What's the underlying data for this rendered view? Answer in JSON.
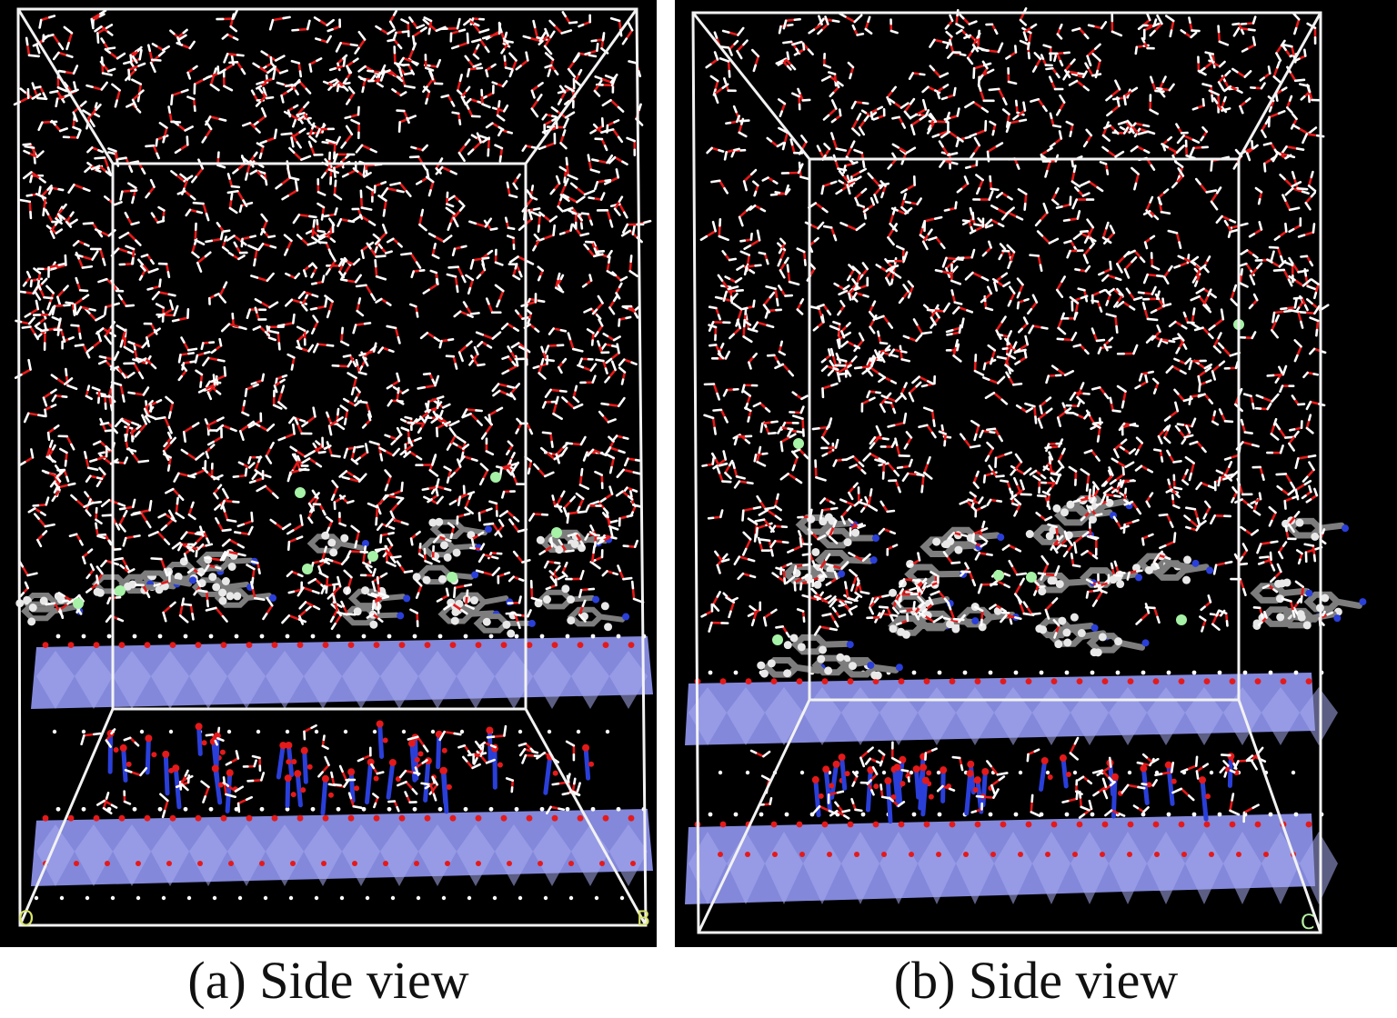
{
  "figure": {
    "panels": [
      {
        "id": "a",
        "caption": "(a) Side view",
        "axis_labels": [
          "O",
          "B"
        ]
      },
      {
        "id": "b",
        "caption": "(b) Side view",
        "axis_labels": [
          "C"
        ]
      }
    ],
    "colors": {
      "background": "#000000",
      "cell_box": "#f2f2f2",
      "oxygen": "#e41a1a",
      "hydrogen": "#ffffff",
      "carbon": "#7d7d7d",
      "nitrogen": "#2a3fd9",
      "chloride_ion": "#a6f2a6",
      "mineral_layer": "#8a8fe6",
      "axis_label": "#d9e36a"
    }
  }
}
